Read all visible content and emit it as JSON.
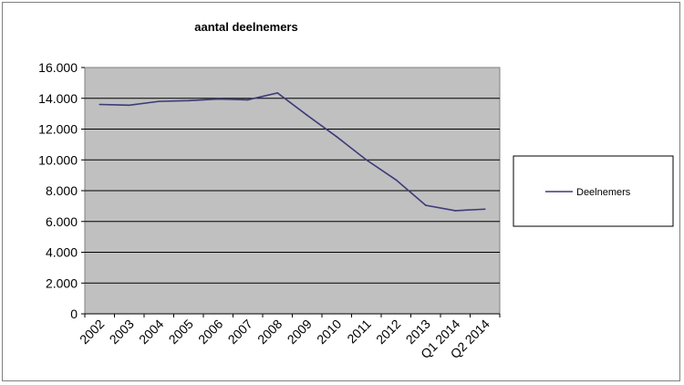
{
  "chart_data": {
    "type": "line",
    "title": "aantal deelnemers",
    "xlabel": "",
    "ylabel": "",
    "categories": [
      "2002",
      "2003",
      "2004",
      "2005",
      "2006",
      "2007",
      "2008",
      "2009",
      "2010",
      "2011",
      "2012",
      "2013",
      "Q1 2014",
      "Q2 2014"
    ],
    "series": [
      {
        "name": "Deelnemers",
        "color": "#3b3b7a",
        "values": [
          13600,
          13550,
          13800,
          13850,
          13950,
          13900,
          14350,
          12900,
          11500,
          10000,
          8700,
          7050,
          6700,
          6800
        ]
      }
    ],
    "ylim": [
      0,
      16000
    ],
    "y_ticks": [
      "0",
      "2.000",
      "4.000",
      "6.000",
      "8.000",
      "10.000",
      "12.000",
      "14.000",
      "16.000"
    ],
    "grid": true,
    "legend_position": "right",
    "plot_background": "#c0c0c0"
  }
}
